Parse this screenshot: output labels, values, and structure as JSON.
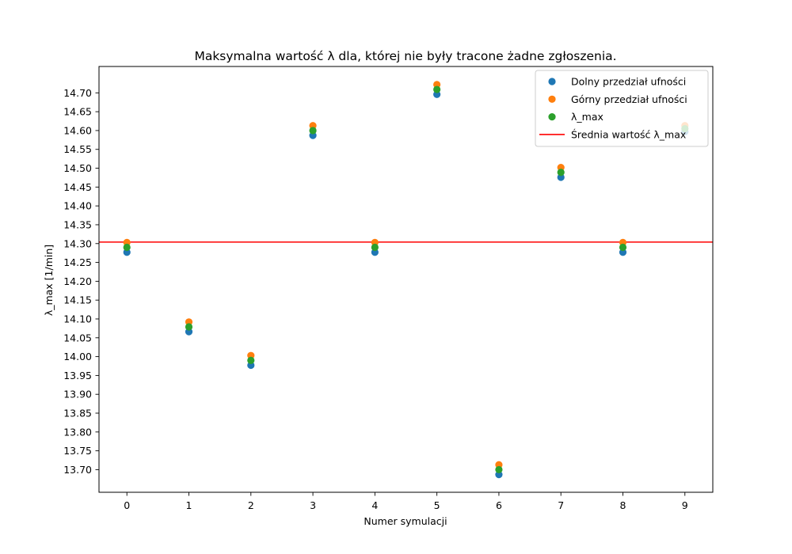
{
  "chart_data": {
    "type": "scatter",
    "title": "Maksymalna wartość λ dla, której nie były tracone żadne zgłoszenia.",
    "xlabel": "Numer symulacji",
    "ylabel": "λ_max [1/min]",
    "x": [
      0,
      1,
      2,
      3,
      4,
      5,
      6,
      7,
      8,
      9
    ],
    "xticks": [
      "0",
      "1",
      "2",
      "3",
      "4",
      "5",
      "6",
      "7",
      "8",
      "9"
    ],
    "xlim": [
      -0.45,
      9.45
    ],
    "yticks": [
      "13.70",
      "13.75",
      "13.80",
      "13.85",
      "13.90",
      "13.95",
      "14.00",
      "14.05",
      "14.10",
      "14.15",
      "14.20",
      "14.25",
      "14.30",
      "14.35",
      "14.40",
      "14.45",
      "14.50",
      "14.55",
      "14.60",
      "14.65",
      "14.70"
    ],
    "ylim": [
      13.64,
      14.77
    ],
    "grid": false,
    "legend_position": "top-right",
    "series": [
      {
        "name": "Dolny przedział ufności",
        "color": "#1f77b4",
        "values": [
          14.277,
          14.066,
          13.977,
          14.587,
          14.277,
          14.696,
          13.687,
          14.476,
          14.277,
          14.597
        ]
      },
      {
        "name": "Górny przedział ufności",
        "color": "#ff7f0e",
        "values": [
          14.303,
          14.092,
          14.003,
          14.613,
          14.303,
          14.722,
          13.713,
          14.502,
          14.303,
          14.613
        ]
      },
      {
        "name": "λ_max",
        "color": "#2ca02c",
        "values": [
          14.29,
          14.079,
          13.99,
          14.6,
          14.29,
          14.709,
          13.7,
          14.489,
          14.29,
          14.605
        ]
      }
    ],
    "reference_line": {
      "name": "Średnia wartość λ_max",
      "color": "#ff0000",
      "value": 14.304
    }
  }
}
